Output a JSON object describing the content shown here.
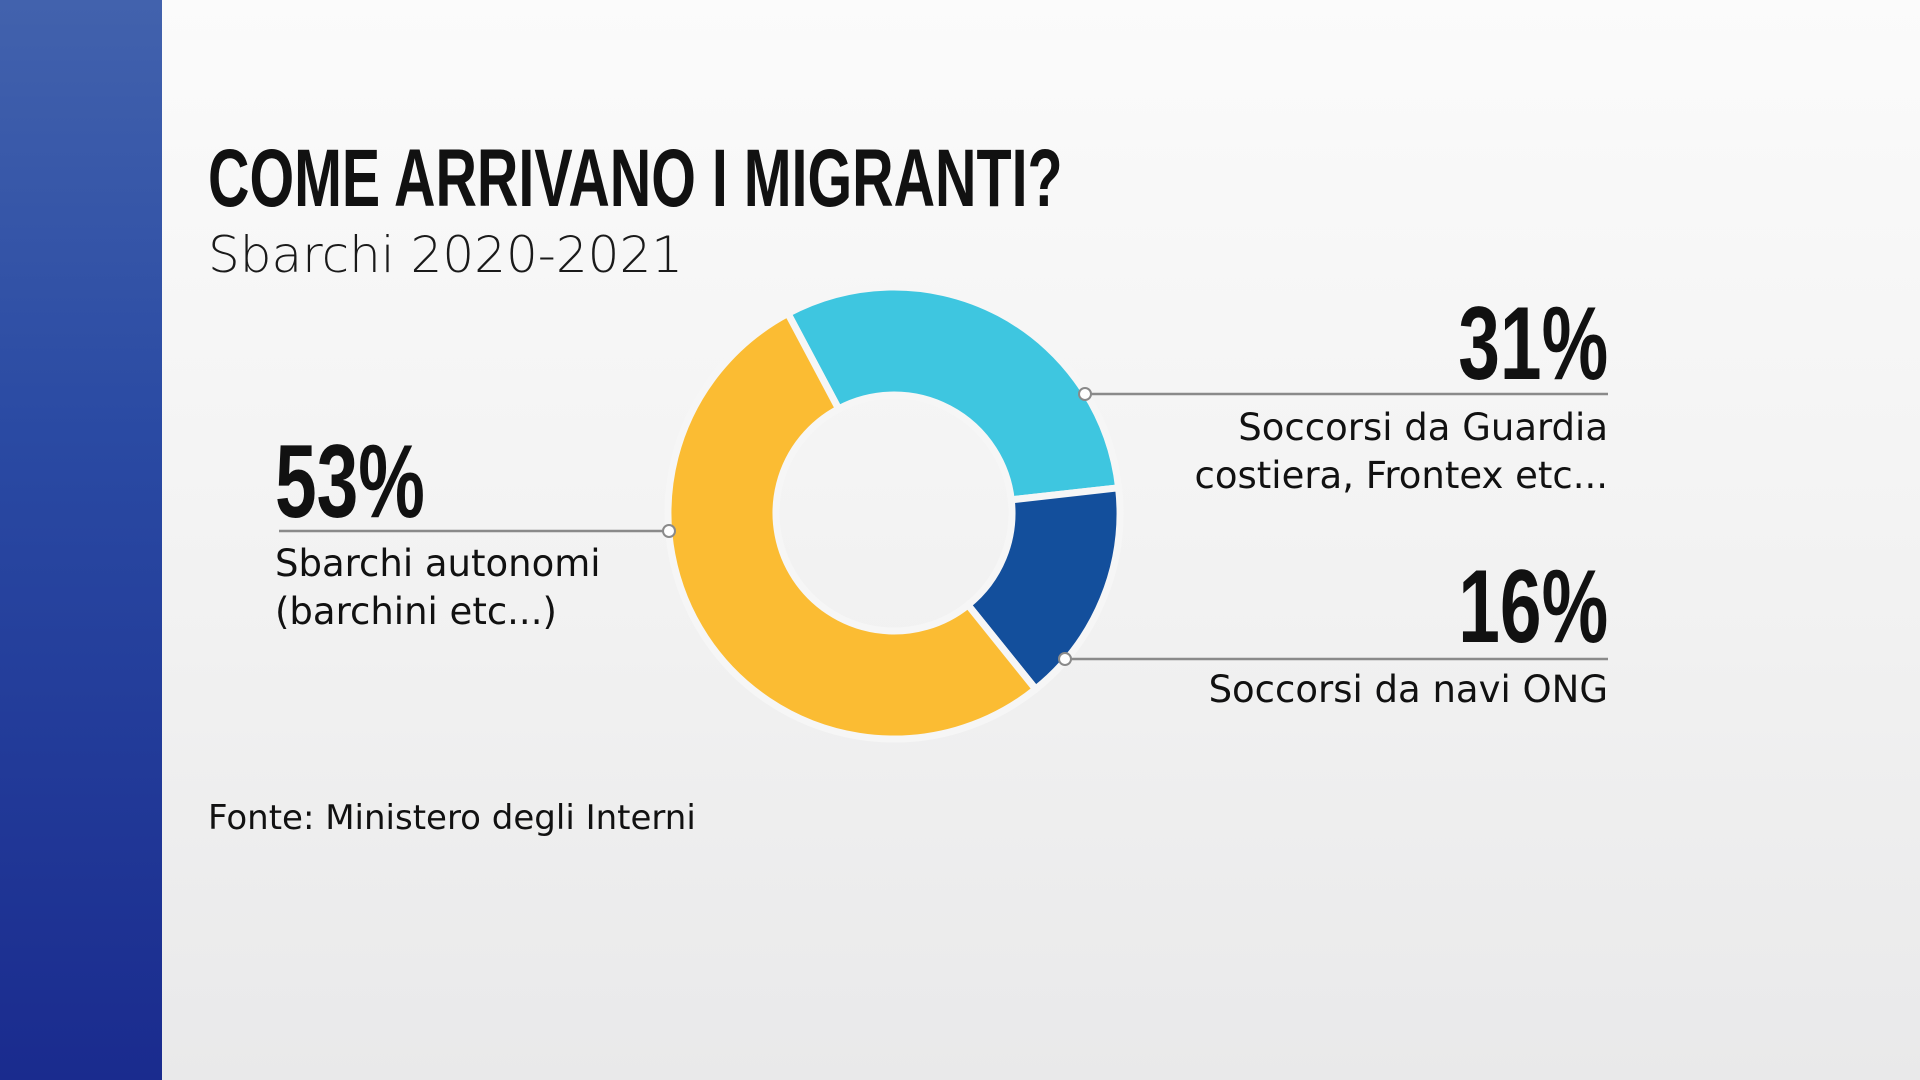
{
  "chart_data": {
    "type": "pie",
    "title": "COME ARRIVANO I MIGRANTI?",
    "subtitle": "Sbarchi 2020-2021",
    "categories": [
      "Sbarchi autonomi\n(barchini etc...)",
      "Soccorsi da Guardia\ncostiera, Frontex etc...",
      "Soccorsi da navi ONG"
    ],
    "values": [
      53,
      31,
      16
    ],
    "value_labels": [
      "53%",
      "31%",
      "16%"
    ],
    "colors": [
      "#fbbc33",
      "#3ec6e0",
      "#134f9c"
    ],
    "donut": true,
    "source": "Fonte:  Ministero degli Interni"
  }
}
